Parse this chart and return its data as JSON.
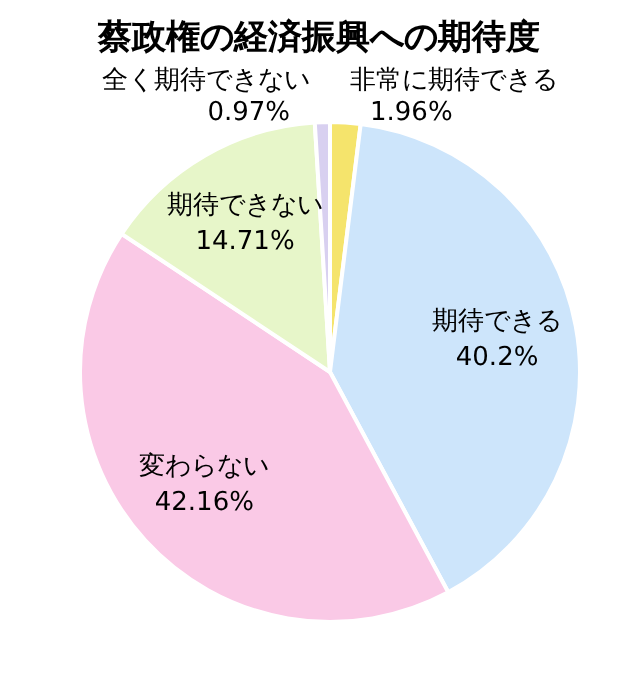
{
  "chart_data": {
    "type": "pie",
    "title": "蔡政権の経済振興への期待度",
    "categories": [
      "非常に期待できる",
      "期待できる",
      "変わらない",
      "期待できない",
      "全く期待できない"
    ],
    "values": [
      1.96,
      40.2,
      42.16,
      14.71,
      0.97
    ],
    "colors": [
      "#f5e46c",
      "#cde5fb",
      "#fac9e6",
      "#e7f6c9",
      "#d8d0f0"
    ],
    "value_labels": [
      "1.96%",
      "40.2%",
      "42.16%",
      "14.71%",
      "0.97%"
    ]
  }
}
